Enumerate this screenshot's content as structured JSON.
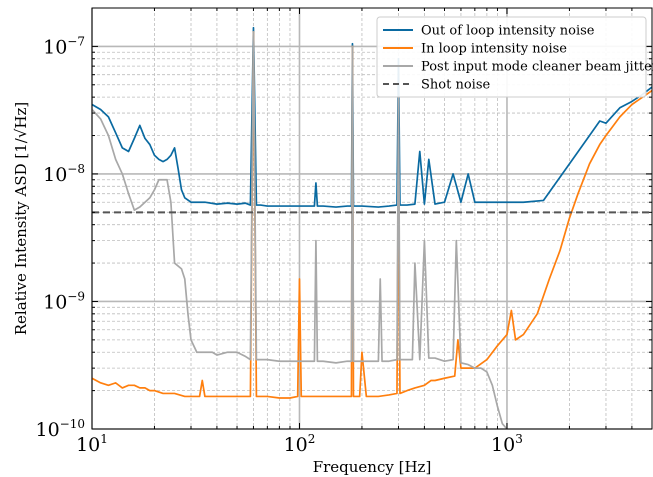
{
  "chart_data": {
    "type": "line",
    "xlabel": "Frequency [Hz]",
    "ylabel": "Relative Intensity ASD [1/√Hz]",
    "xscale": "log",
    "yscale": "log",
    "xlim": [
      10,
      5000
    ],
    "ylim": [
      1e-10,
      2e-07
    ],
    "grid": "major and minor, dashed",
    "legend_position": "top-right",
    "x_ticks": [
      {
        "value": 10,
        "base": "10",
        "exp": "1"
      },
      {
        "value": 100,
        "base": "10",
        "exp": "2"
      },
      {
        "value": 1000,
        "base": "10",
        "exp": "3"
      }
    ],
    "y_ticks": [
      {
        "value": 1e-10,
        "base": "10",
        "exp": "−10"
      },
      {
        "value": 1e-09,
        "base": "10",
        "exp": "−9"
      },
      {
        "value": 1e-08,
        "base": "10",
        "exp": "−8"
      },
      {
        "value": 1e-07,
        "base": "10",
        "exp": "−7"
      }
    ],
    "series": [
      {
        "name": "Out of loop intensity noise",
        "color": "#0a6aa1",
        "dash": "solid",
        "x": [
          10,
          11,
          12,
          13,
          14,
          15,
          16,
          17,
          18,
          19,
          20,
          21,
          22,
          23,
          24,
          25,
          26,
          27,
          28,
          30,
          35,
          40,
          45,
          50,
          55,
          58,
          60,
          62,
          65,
          70,
          80,
          90,
          100,
          110,
          118,
          120,
          122,
          130,
          150,
          170,
          178,
          180,
          182,
          200,
          240,
          270,
          295,
          300,
          305,
          330,
          360,
          380,
          400,
          420,
          450,
          500,
          550,
          600,
          650,
          700,
          800,
          900,
          1000,
          1200,
          1500,
          2000,
          2500,
          2800,
          3000,
          3500,
          4000,
          4500,
          5000
        ],
        "y": [
          3.5e-08,
          3.2e-08,
          2.8e-08,
          2.1e-08,
          1.6e-08,
          1.5e-08,
          1.9e-08,
          2.4e-08,
          1.9e-08,
          1.7e-08,
          1.4e-08,
          1.3e-08,
          1.25e-08,
          1.3e-08,
          1.4e-08,
          1.6e-08,
          1.1e-08,
          7.5e-09,
          6.5e-09,
          6e-09,
          6e-09,
          5.8e-09,
          5.9e-09,
          5.8e-09,
          5.9e-09,
          5.7e-09,
          1.4e-07,
          5.7e-09,
          5.7e-09,
          5.6e-09,
          5.6e-09,
          5.6e-09,
          5.6e-09,
          5.6e-09,
          5.6e-09,
          8.5e-09,
          5.6e-09,
          5.6e-09,
          5.5e-09,
          5.6e-09,
          5.6e-09,
          1.05e-07,
          5.6e-09,
          5.6e-09,
          5.5e-09,
          5.6e-09,
          5.7e-09,
          8e-08,
          5.7e-09,
          5.7e-09,
          5.8e-09,
          1.5e-08,
          5.8e-09,
          1.3e-08,
          5.8e-09,
          6e-09,
          1e-08,
          6e-09,
          1e-08,
          6e-09,
          6e-09,
          6e-09,
          6e-09,
          6e-09,
          6.2e-09,
          1.2e-08,
          2e-08,
          2.6e-08,
          2.5e-08,
          3.3e-08,
          3.7e-08,
          4.2e-08,
          4.8e-08
        ]
      },
      {
        "name": "In loop intensity noise",
        "color": "#ff7f0e",
        "dash": "solid",
        "x": [
          10,
          11,
          12,
          13,
          14,
          15,
          16,
          17,
          18,
          19,
          20,
          22,
          25,
          28,
          30,
          33,
          34,
          35,
          40,
          45,
          50,
          55,
          58,
          60,
          62,
          65,
          70,
          80,
          90,
          98,
          100,
          102,
          110,
          130,
          150,
          170,
          178,
          180,
          182,
          195,
          200,
          210,
          240,
          270,
          295,
          300,
          305,
          330,
          360,
          400,
          430,
          450,
          500,
          560,
          580,
          600,
          650,
          700,
          800,
          900,
          1000,
          1050,
          1100,
          1200,
          1400,
          1600,
          1800,
          2000,
          2200,
          2500,
          2800,
          3000,
          3500,
          4000,
          4500,
          5000
        ],
        "y": [
          2.5e-10,
          2.3e-10,
          2.2e-10,
          2.3e-10,
          2.1e-10,
          2.2e-10,
          2.2e-10,
          2.1e-10,
          2.1e-10,
          2e-10,
          2e-10,
          1.9e-10,
          1.9e-10,
          1.8e-10,
          1.8e-10,
          1.8e-10,
          2.4e-10,
          1.8e-10,
          1.8e-10,
          1.8e-10,
          1.8e-10,
          1.8e-10,
          1.8e-10,
          1.3e-07,
          1.8e-10,
          1.8e-10,
          1.8e-10,
          1.75e-10,
          1.75e-10,
          1.8e-10,
          1.5e-09,
          1.8e-10,
          1.8e-10,
          1.8e-10,
          1.8e-10,
          1.8e-10,
          1.8e-10,
          1e-07,
          1.8e-10,
          1.8e-10,
          4e-10,
          1.8e-10,
          1.8e-10,
          1.85e-10,
          1.9e-10,
          1.5e-08,
          1.9e-10,
          2e-10,
          2.1e-10,
          2.2e-10,
          2.4e-10,
          2.4e-10,
          2.5e-10,
          2.6e-10,
          5e-10,
          3e-10,
          3e-10,
          3e-10,
          3.5e-10,
          4.5e-10,
          5.5e-10,
          8.5e-10,
          5e-10,
          5.5e-10,
          8e-10,
          1.5e-09,
          2.5e-09,
          4.5e-09,
          7e-09,
          1.2e-08,
          1.7e-08,
          2e-08,
          2.8e-08,
          3.5e-08,
          4e-08,
          4.5e-08
        ]
      },
      {
        "name": "Post input mode cleaner beam jitter",
        "color": "#a8a8a8",
        "dash": "solid",
        "x": [
          10,
          11,
          12,
          13,
          14,
          15,
          16,
          17,
          18,
          19,
          20,
          21,
          22,
          23,
          24,
          25,
          27,
          28,
          29,
          30,
          32,
          35,
          38,
          40,
          45,
          50,
          55,
          58,
          60,
          62,
          65,
          70,
          80,
          90,
          100,
          110,
          118,
          120,
          122,
          130,
          150,
          170,
          178,
          180,
          182,
          200,
          240,
          245,
          250,
          270,
          295,
          300,
          305,
          330,
          350,
          360,
          380,
          400,
          420,
          450,
          500,
          550,
          570,
          600,
          650,
          700,
          750,
          800,
          850,
          900,
          950,
          1000
        ],
        "y": [
          3.2e-08,
          2.7e-08,
          2e-08,
          1.3e-08,
          1e-08,
          7e-09,
          5.2e-09,
          5.5e-09,
          6e-09,
          6.5e-09,
          7.5e-09,
          9e-09,
          9e-09,
          9e-09,
          6e-09,
          2e-09,
          1.8e-09,
          1.5e-09,
          8e-10,
          5e-10,
          4e-10,
          4e-10,
          4e-10,
          3.8e-10,
          4e-10,
          4e-10,
          3.7e-10,
          3.5e-10,
          1.3e-07,
          3.5e-10,
          3.5e-10,
          3.5e-10,
          3.4e-10,
          3.4e-10,
          3.4e-10,
          3.4e-10,
          3.4e-10,
          3e-09,
          3.4e-10,
          3.4e-10,
          3.3e-10,
          3.4e-10,
          3.4e-10,
          1e-07,
          3.4e-10,
          3.4e-10,
          3.4e-10,
          1.5e-09,
          3.4e-10,
          3.4e-10,
          3.5e-10,
          4e-08,
          3.5e-10,
          3.5e-10,
          3.5e-10,
          2e-09,
          3.5e-10,
          3e-09,
          3.6e-10,
          3.6e-10,
          3.4e-10,
          3.5e-10,
          3e-09,
          3.3e-10,
          3.2e-10,
          3e-10,
          3e-10,
          2.8e-10,
          2.2e-10,
          1.5e-10,
          1.1e-10,
          1e-10
        ]
      },
      {
        "name": "Shot noise",
        "color": "#555555",
        "dash": "dashed",
        "x": [
          10,
          5000
        ],
        "y": [
          5e-09,
          5e-09
        ]
      }
    ]
  }
}
